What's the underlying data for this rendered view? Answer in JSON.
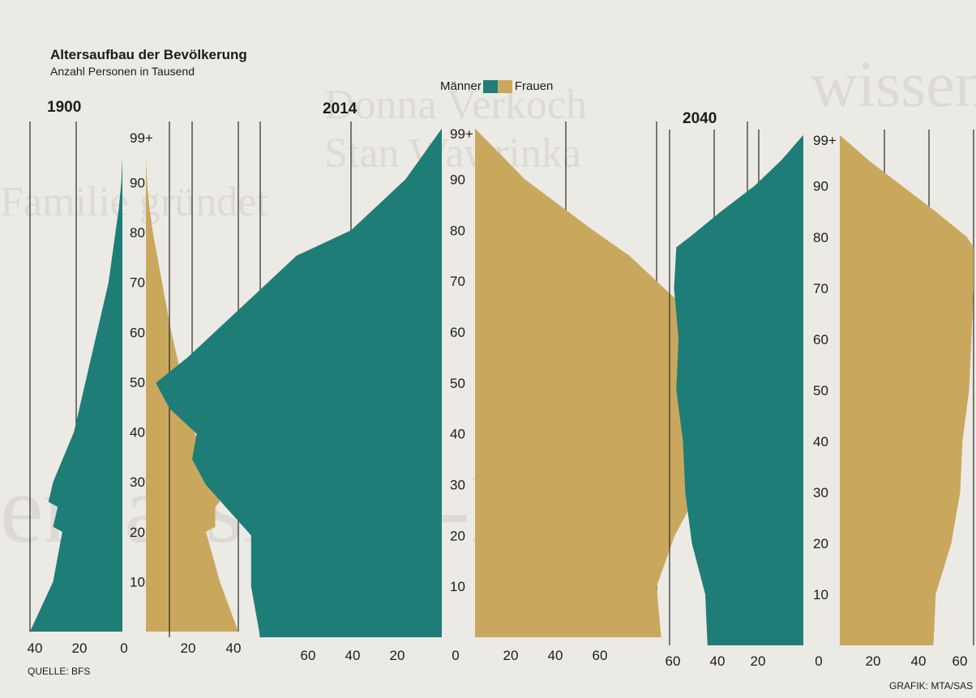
{
  "title": "Altersaufbau der Bevölkerung",
  "subtitle": "Anzahl Personen in Tausend",
  "legend": {
    "men": "Männer",
    "women": "Frauen"
  },
  "source": "QUELLE: BFS",
  "credit": "GRAFIK: MTA/SAS",
  "colors": {
    "men": "#1f7d78",
    "women": "#c9a85e",
    "grid": "#2a2a2a",
    "background": "#eceae4"
  },
  "chart_data": [
    {
      "type": "bar",
      "title": "1900",
      "age_ticks": [
        "10",
        "20",
        "30",
        "40",
        "50",
        "60",
        "70",
        "80",
        "90",
        "99+"
      ],
      "men_tick_labels": [
        "40",
        "20",
        "0"
      ],
      "women_tick_labels": [
        "20",
        "40"
      ],
      "xlim": [
        0,
        40
      ],
      "ages": [
        0,
        10,
        20,
        21,
        25,
        26,
        30,
        40,
        50,
        60,
        70,
        80,
        85,
        90,
        95
      ],
      "series": [
        {
          "name": "Männer",
          "values": [
            40,
            30,
            26,
            30,
            28,
            32,
            30,
            21,
            16,
            11,
            6,
            3,
            1.5,
            0.5,
            0
          ]
        },
        {
          "name": "Frauen",
          "values": [
            40,
            32,
            26,
            30,
            30,
            32,
            29,
            21,
            16,
            11,
            7,
            3,
            1.5,
            0.5,
            0
          ]
        }
      ]
    },
    {
      "type": "bar",
      "title": "2014",
      "age_ticks": [
        "10",
        "20",
        "30",
        "40",
        "50",
        "60",
        "70",
        "80",
        "90",
        "99+"
      ],
      "men_tick_labels": [
        "60",
        "40",
        "20",
        "0"
      ],
      "women_tick_labels": [
        "20",
        "40",
        "60"
      ],
      "xlim": [
        0,
        60
      ],
      "ages": [
        0,
        10,
        20,
        30,
        35,
        40,
        45,
        50,
        55,
        60,
        70,
        75,
        80,
        90,
        100
      ],
      "series": [
        {
          "name": "Männer",
          "values": [
            40,
            42,
            42,
            52,
            55,
            54,
            60,
            63,
            56,
            50,
            38,
            32,
            20,
            8,
            0
          ]
        },
        {
          "name": "Frauen",
          "values": [
            41,
            40,
            44,
            50,
            55,
            53,
            60,
            64,
            60,
            52,
            40,
            34,
            26,
            11,
            0
          ]
        }
      ]
    },
    {
      "type": "bar",
      "title": "2040",
      "age_ticks": [
        "10",
        "20",
        "30",
        "40",
        "50",
        "60",
        "70",
        "80",
        "90",
        "99+"
      ],
      "men_tick_labels": [
        "60",
        "40",
        "20",
        "0"
      ],
      "women_tick_labels": [
        "20",
        "40",
        "60"
      ],
      "xlim": [
        0,
        60
      ],
      "ages": [
        0,
        10,
        20,
        30,
        40,
        50,
        60,
        70,
        78,
        80,
        85,
        90,
        95,
        100
      ],
      "series": [
        {
          "name": "Männer",
          "values": [
            43,
            44,
            50,
            53,
            54,
            57,
            56,
            58,
            57,
            51,
            37,
            22,
            10,
            0
          ]
        },
        {
          "name": "Frauen",
          "values": [
            42,
            43,
            50,
            54,
            55,
            58,
            59,
            60,
            60,
            57,
            43,
            28,
            13,
            0
          ]
        }
      ]
    }
  ]
}
